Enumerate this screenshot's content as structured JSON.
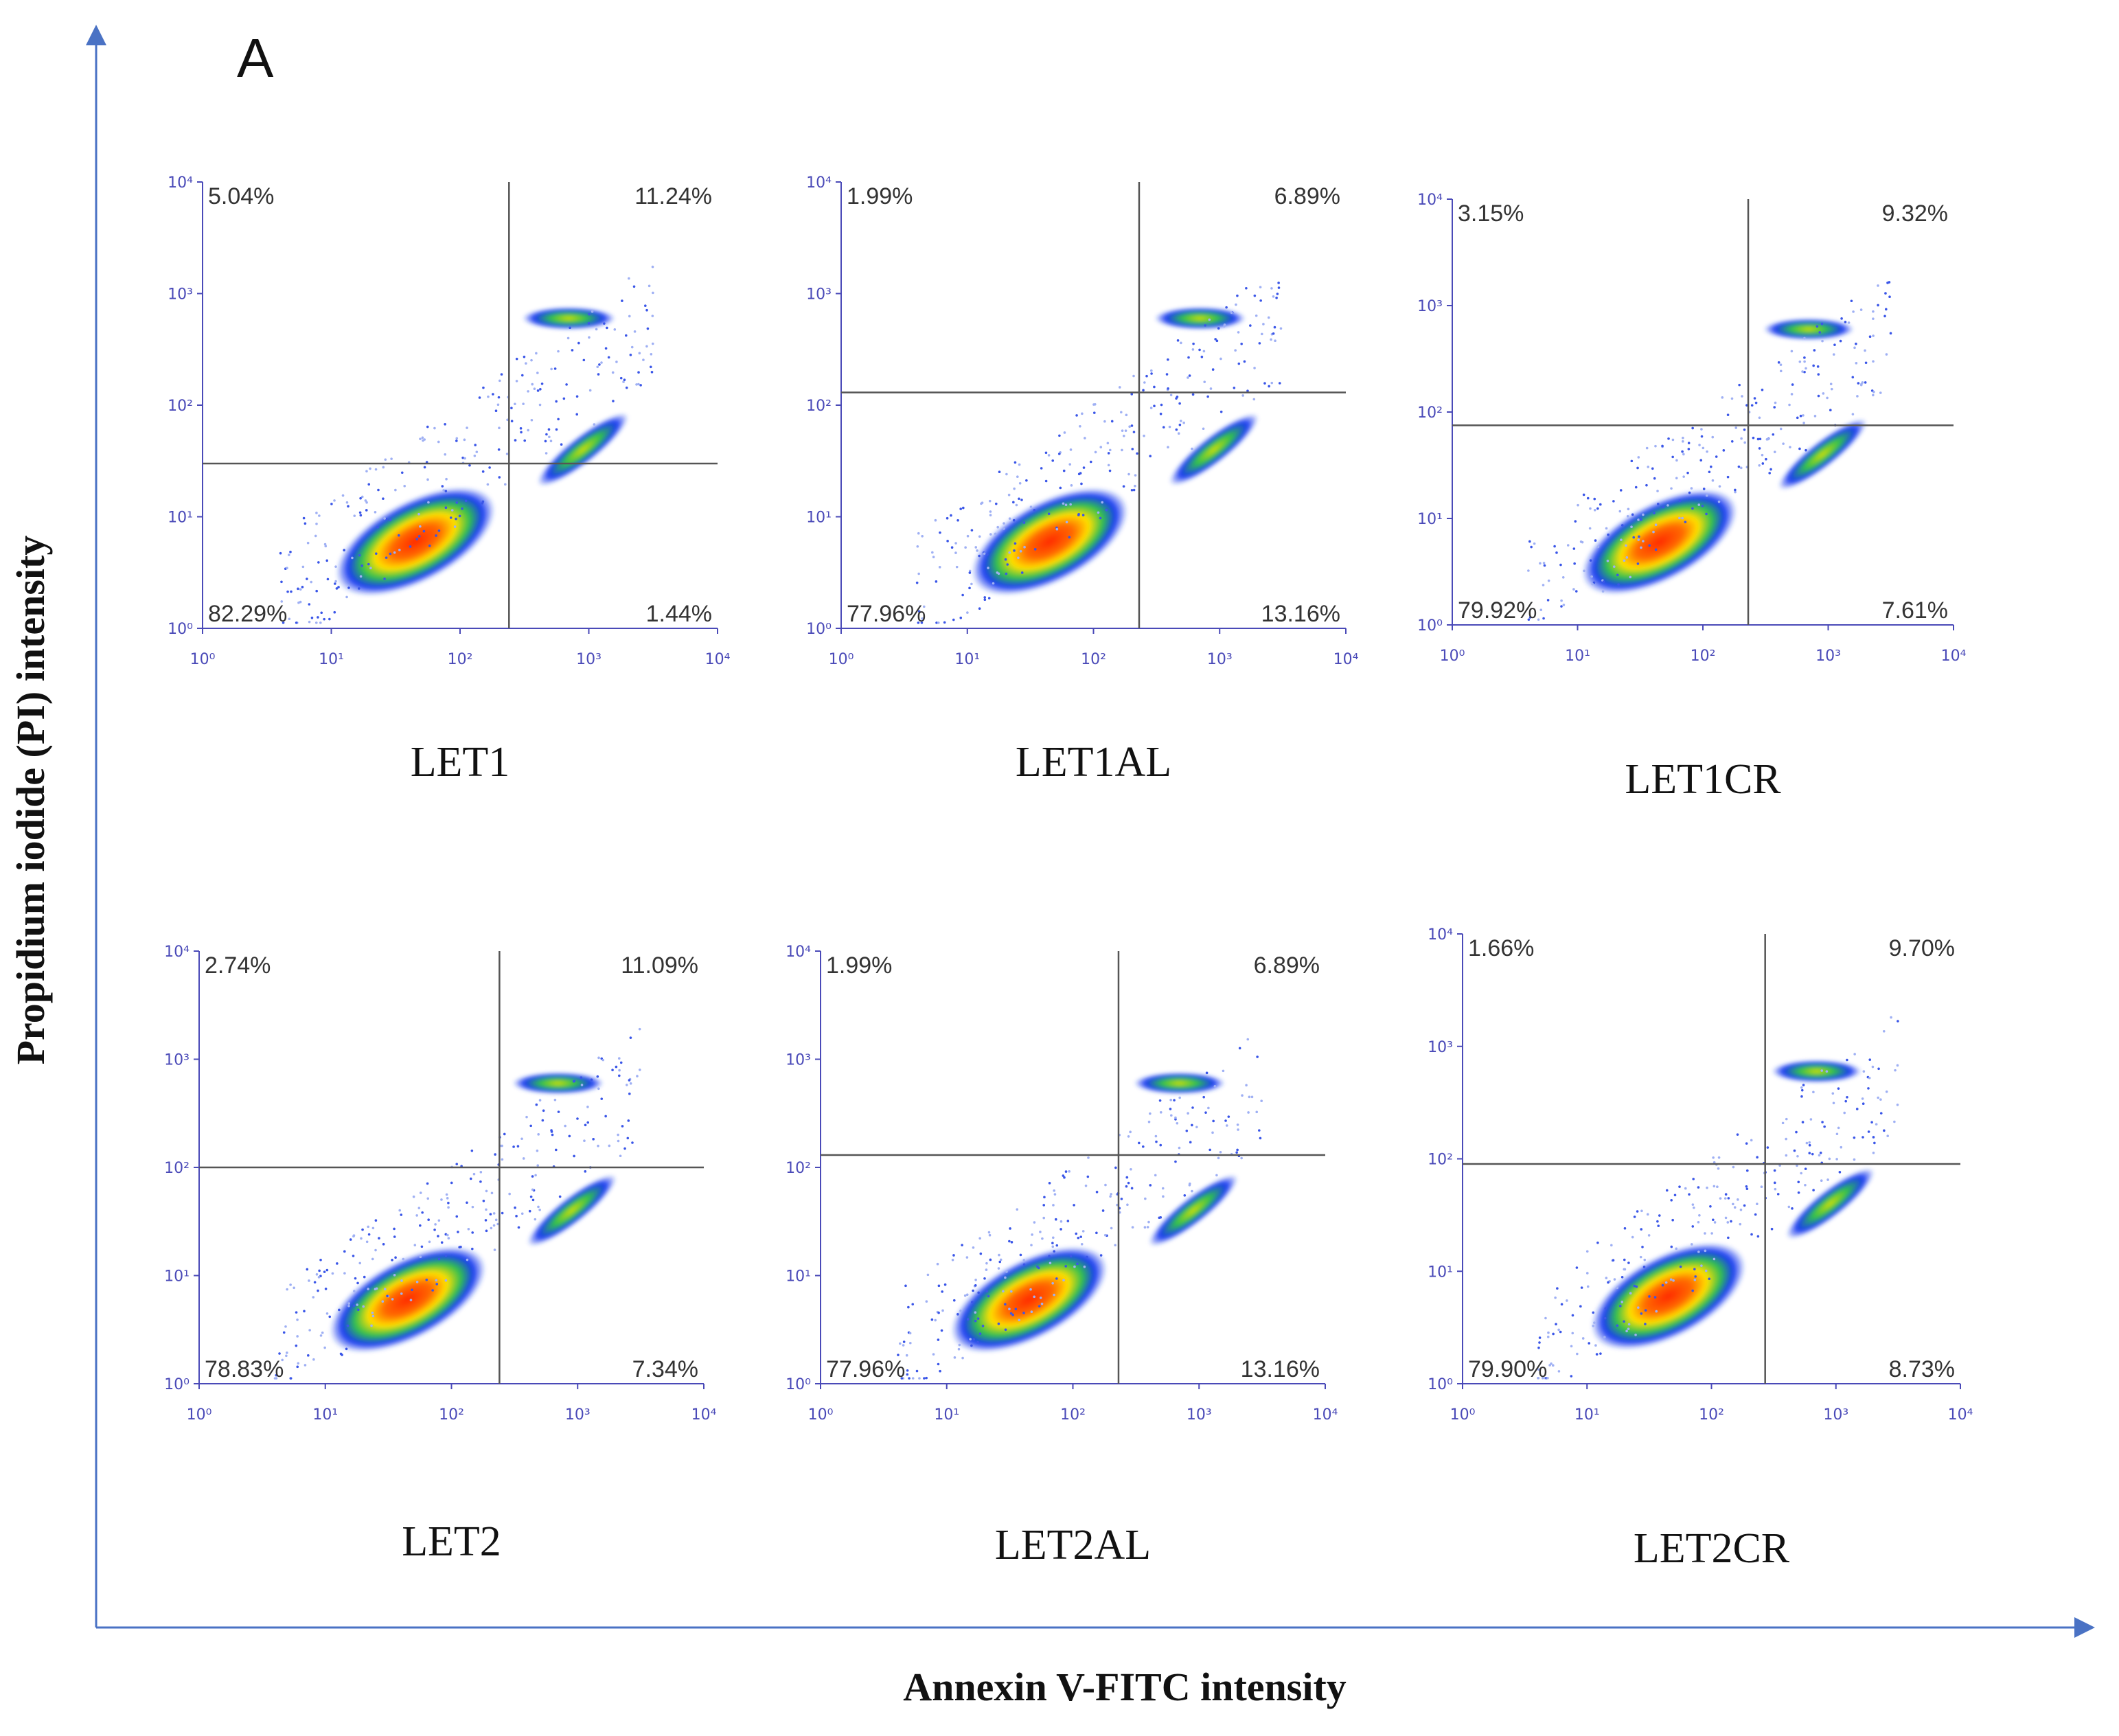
{
  "figure": {
    "panel_label": "A",
    "x_axis_title": "Annexin V-FITC intensity",
    "y_axis_title": "Propidium iodide (PI) intensity"
  },
  "chart_data": [
    {
      "type": "scatter",
      "name": "LET1",
      "xscale": "log",
      "yscale": "log",
      "xlim": [
        1,
        10000
      ],
      "ylim": [
        1,
        10000
      ],
      "tick_labels": [
        "10⁰",
        "10¹",
        "10²",
        "10³",
        "10⁴"
      ],
      "gate_x": 240,
      "gate_y": 30,
      "quadrants": {
        "upper_left": "5.04%",
        "upper_right": "11.24%",
        "lower_left": "82.29%",
        "lower_right": "1.44%"
      }
    },
    {
      "type": "scatter",
      "name": "LET1AL",
      "xscale": "log",
      "yscale": "log",
      "xlim": [
        1,
        10000
      ],
      "ylim": [
        1,
        10000
      ],
      "tick_labels": [
        "10⁰",
        "10¹",
        "10²",
        "10³",
        "10⁴"
      ],
      "gate_x": 230,
      "gate_y": 130,
      "quadrants": {
        "upper_left": "1.99%",
        "upper_right": "6.89%",
        "lower_left": "77.96%",
        "lower_right": "13.16%"
      }
    },
    {
      "type": "scatter",
      "name": "LET1CR",
      "xscale": "log",
      "yscale": "log",
      "xlim": [
        1,
        10000
      ],
      "ylim": [
        1,
        10000
      ],
      "tick_labels": [
        "10⁰",
        "10¹",
        "10²",
        "10³",
        "10⁴"
      ],
      "gate_x": 230,
      "gate_y": 75,
      "quadrants": {
        "upper_left": "3.15%",
        "upper_right": "9.32%",
        "lower_left": "79.92%",
        "lower_right": "7.61%"
      }
    },
    {
      "type": "scatter",
      "name": "LET2",
      "xscale": "log",
      "yscale": "log",
      "xlim": [
        1,
        10000
      ],
      "ylim": [
        1,
        10000
      ],
      "tick_labels": [
        "10⁰",
        "10¹",
        "10²",
        "10³",
        "10⁴"
      ],
      "gate_x": 240,
      "gate_y": 100,
      "quadrants": {
        "upper_left": "2.74%",
        "upper_right": "11.09%",
        "lower_left": "78.83%",
        "lower_right": "7.34%"
      }
    },
    {
      "type": "scatter",
      "name": "LET2AL",
      "xscale": "log",
      "yscale": "log",
      "xlim": [
        1,
        10000
      ],
      "ylim": [
        1,
        10000
      ],
      "tick_labels": [
        "10⁰",
        "10¹",
        "10²",
        "10³",
        "10⁴"
      ],
      "gate_x": 230,
      "gate_y": 130,
      "quadrants": {
        "upper_left": "1.99%",
        "upper_right": "6.89%",
        "lower_left": "77.96%",
        "lower_right": "13.16%"
      }
    },
    {
      "type": "scatter",
      "name": "LET2CR",
      "xscale": "log",
      "yscale": "log",
      "xlim": [
        1,
        10000
      ],
      "ylim": [
        1,
        10000
      ],
      "tick_labels": [
        "10⁰",
        "10¹",
        "10²",
        "10³",
        "10⁴"
      ],
      "gate_x": 270,
      "gate_y": 90,
      "quadrants": {
        "upper_left": "1.66%",
        "upper_right": "9.70%",
        "lower_left": "79.90%",
        "lower_right": "8.73%"
      }
    }
  ]
}
